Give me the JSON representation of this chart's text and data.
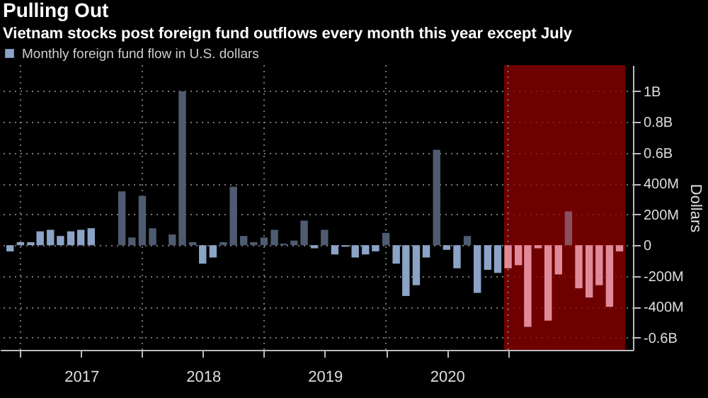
{
  "chart_data": {
    "type": "bar",
    "title": "Pulling Out",
    "subtitle": "Vietnam stocks post foreign fund outflows every month this year except July",
    "ylabel": "Dollars",
    "x": [
      "2016-12",
      "2017-01",
      "2017-02",
      "2017-03",
      "2017-04",
      "2017-05",
      "2017-06",
      "2017-07",
      "2017-08",
      "2017-09",
      "2017-10",
      "2017-11",
      "2017-12",
      "2018-01",
      "2018-02",
      "2018-03",
      "2018-04",
      "2018-05",
      "2018-06",
      "2018-07",
      "2018-08",
      "2018-09",
      "2018-10",
      "2018-11",
      "2018-12",
      "2019-01",
      "2019-02",
      "2019-03",
      "2019-04",
      "2019-05",
      "2019-06",
      "2019-07",
      "2019-08",
      "2019-09",
      "2019-10",
      "2019-11",
      "2019-12",
      "2020-01",
      "2020-02",
      "2020-03",
      "2020-04",
      "2020-05",
      "2020-06",
      "2020-07",
      "2020-08",
      "2020-09",
      "2020-10",
      "2020-11",
      "2020-12",
      "2021-01",
      "2021-02",
      "2021-03",
      "2021-04",
      "2021-05",
      "2021-06",
      "2021-07",
      "2021-08",
      "2021-09",
      "2021-10",
      "2021-11",
      "2021-12"
    ],
    "series": [
      {
        "name": "Monthly foreign fund flow in U.S. dollars",
        "color": "#8ba3c7",
        "values": [
          -40000000,
          20000000,
          20000000,
          90000000,
          100000000,
          60000000,
          90000000,
          100000000,
          110000000,
          0,
          0,
          350000000,
          50000000,
          320000000,
          110000000,
          0,
          70000000,
          1000000000,
          20000000,
          -120000000,
          -80000000,
          20000000,
          380000000,
          60000000,
          20000000,
          50000000,
          100000000,
          10000000,
          30000000,
          160000000,
          -20000000,
          100000000,
          -60000000,
          -10000000,
          -80000000,
          -60000000,
          -40000000,
          80000000,
          -120000000,
          -330000000,
          -260000000,
          -80000000,
          620000000,
          -30000000,
          -150000000,
          60000000,
          -310000000,
          -160000000,
          -180000000,
          -150000000,
          -130000000,
          -530000000,
          -20000000,
          -490000000,
          -190000000,
          220000000,
          -280000000,
          -340000000,
          -260000000,
          -400000000,
          -40000000
        ],
        "colors": [
          "#8ba3c7",
          "#8ba3c7",
          "#8ba3c7",
          "#8ba3c7",
          "#8ba3c7",
          "#8ba3c7",
          "#8ba3c7",
          "#8ba3c7",
          "#8ba3c7",
          "#8ba3c7",
          "#8ba3c7",
          "#4f5b70",
          "#4f5b70",
          "#4f5b70",
          "#4f5b70",
          "#4f5b70",
          "#4f5b70",
          "#4f5b70",
          "#4f5b70",
          "#8ba3c7",
          "#8ba3c7",
          "#4f5b70",
          "#4f5b70",
          "#4f5b70",
          "#4f5b70",
          "#4f5b70",
          "#4f5b70",
          "#4f5b70",
          "#4f5b70",
          "#4f5b70",
          "#8ba3c7",
          "#4f5b70",
          "#8ba3c7",
          "#8ba3c7",
          "#8ba3c7",
          "#8ba3c7",
          "#8ba3c7",
          "#4f5b70",
          "#8ba3c7",
          "#8ba3c7",
          "#8ba3c7",
          "#8ba3c7",
          "#4f5b70",
          "#8ba3c7",
          "#8ba3c7",
          "#4f5b70",
          "#8ba3c7",
          "#8ba3c7",
          "#8ba3c7",
          "#e08a98",
          "#e08a98",
          "#e08a98",
          "#e08a98",
          "#e08a98",
          "#e08a98",
          "#8a5060",
          "#e08a98",
          "#e08a98",
          "#e08a98",
          "#e08a98",
          "#e08a98"
        ]
      }
    ],
    "xlim": [
      "2016-11-22",
      "2021-12-20"
    ],
    "xticks": [
      {
        "value": "2017-01-01",
        "label": null
      },
      {
        "value": "2017-07-02",
        "label": "2017"
      },
      {
        "value": "2018-01-01",
        "label": null
      },
      {
        "value": "2018-07-02",
        "label": "2018"
      },
      {
        "value": "2019-01-01",
        "label": null
      },
      {
        "value": "2019-07-02",
        "label": "2019"
      },
      {
        "value": "2020-01-01",
        "label": null
      },
      {
        "value": "2020-07-02",
        "label": "2020"
      },
      {
        "value": "2021-01-01",
        "label": null
      }
    ],
    "ylim": [
      -680000000,
      1170000000
    ],
    "yticks": [
      {
        "value": 1000000000,
        "label": "1B"
      },
      {
        "value": 800000000,
        "label": "0.8B"
      },
      {
        "value": 600000000,
        "label": "0.6B"
      },
      {
        "value": 400000000,
        "label": "400M"
      },
      {
        "value": 200000000,
        "label": "200M"
      },
      0,
      {
        "value": -200000000,
        "label": "-200M"
      },
      {
        "value": -400000000,
        "label": "-400M"
      },
      {
        "value": -600000000,
        "label": "-0.6B"
      }
    ],
    "bands": [
      {
        "axis": "x",
        "from": "2020-12-20",
        "to": "2021-12-18",
        "color": "#8b0000"
      }
    ],
    "grid": true,
    "legend": "top left"
  }
}
